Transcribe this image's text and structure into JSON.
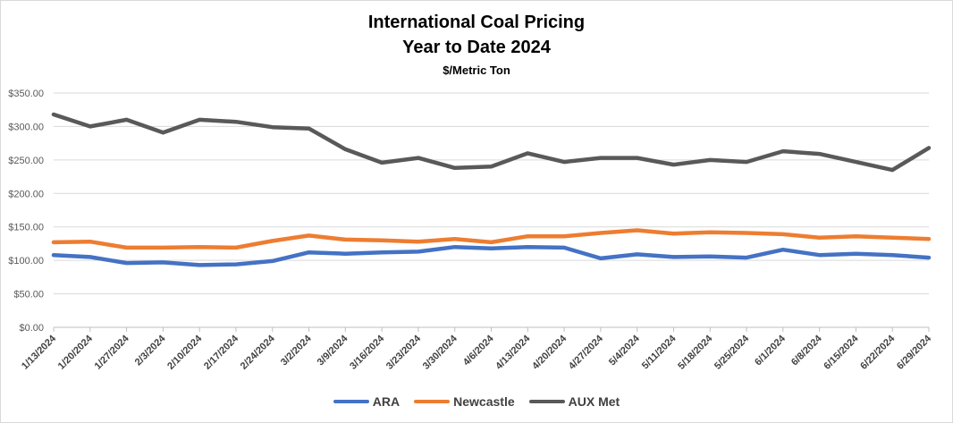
{
  "chart_data": {
    "type": "line",
    "title": "International Coal Pricing",
    "subtitle": "Year to Date 2024",
    "unit_label": "$/Metric Ton",
    "ylim": [
      0,
      350
    ],
    "yticks": [
      "$0.00",
      "$50.00",
      "$100.00",
      "$150.00",
      "$200.00",
      "$250.00",
      "$300.00",
      "$350.00"
    ],
    "grid": true,
    "legend_position": "bottom",
    "categories": [
      "1/13/2024",
      "1/20/2024",
      "1/27/2024",
      "2/3/2024",
      "2/10/2024",
      "2/17/2024",
      "2/24/2024",
      "3/2/2024",
      "3/9/2024",
      "3/16/2024",
      "3/23/2024",
      "3/30/2024",
      "4/6/2024",
      "4/13/2024",
      "4/20/2024",
      "4/27/2024",
      "5/4/2024",
      "5/11/2024",
      "5/18/2024",
      "5/25/2024",
      "6/1/2024",
      "6/8/2024",
      "6/15/2024",
      "6/22/2024",
      "6/29/2024"
    ],
    "series": [
      {
        "name": "ARA",
        "color": "#4472c4",
        "values": [
          108,
          105,
          96,
          97,
          93,
          94,
          99,
          112,
          110,
          112,
          113,
          120,
          118,
          120,
          119,
          103,
          109,
          105,
          106,
          104,
          116,
          108,
          110,
          108,
          104
        ]
      },
      {
        "name": "Newcastle",
        "color": "#ed7d31",
        "values": [
          127,
          128,
          119,
          119,
          120,
          119,
          129,
          137,
          131,
          130,
          128,
          132,
          127,
          136,
          136,
          141,
          145,
          140,
          142,
          141,
          139,
          134,
          136,
          134,
          132
        ]
      },
      {
        "name": "AUX Met",
        "color": "#595959",
        "values": [
          318,
          300,
          310,
          291,
          310,
          307,
          299,
          297,
          266,
          246,
          253,
          238,
          240,
          260,
          247,
          253,
          253,
          243,
          250,
          247,
          263,
          259,
          247,
          235,
          268
        ]
      }
    ]
  }
}
